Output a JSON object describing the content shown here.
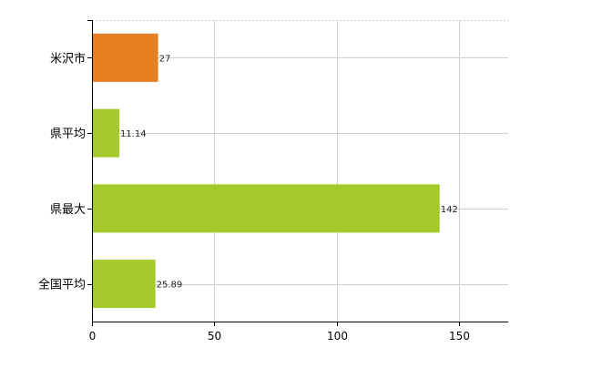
{
  "chart_data": {
    "type": "bar",
    "orientation": "horizontal",
    "categories": [
      "米沢市",
      "県平均",
      "県最大",
      "全国平均"
    ],
    "values": [
      27,
      11.14,
      142,
      25.89
    ],
    "value_labels": [
      "27",
      "11.14",
      "142",
      "25.89"
    ],
    "bar_colors": [
      "#e67e22",
      "#a4c92a",
      "#a4c92a",
      "#a4c92a"
    ],
    "x_ticks": [
      0,
      50,
      100,
      150
    ],
    "xlim": [
      0,
      170
    ],
    "grid": true,
    "legend": "none"
  },
  "colors": {
    "highlight": "#e67e22",
    "default": "#a4c92a",
    "grid": "#d0d0d0"
  }
}
